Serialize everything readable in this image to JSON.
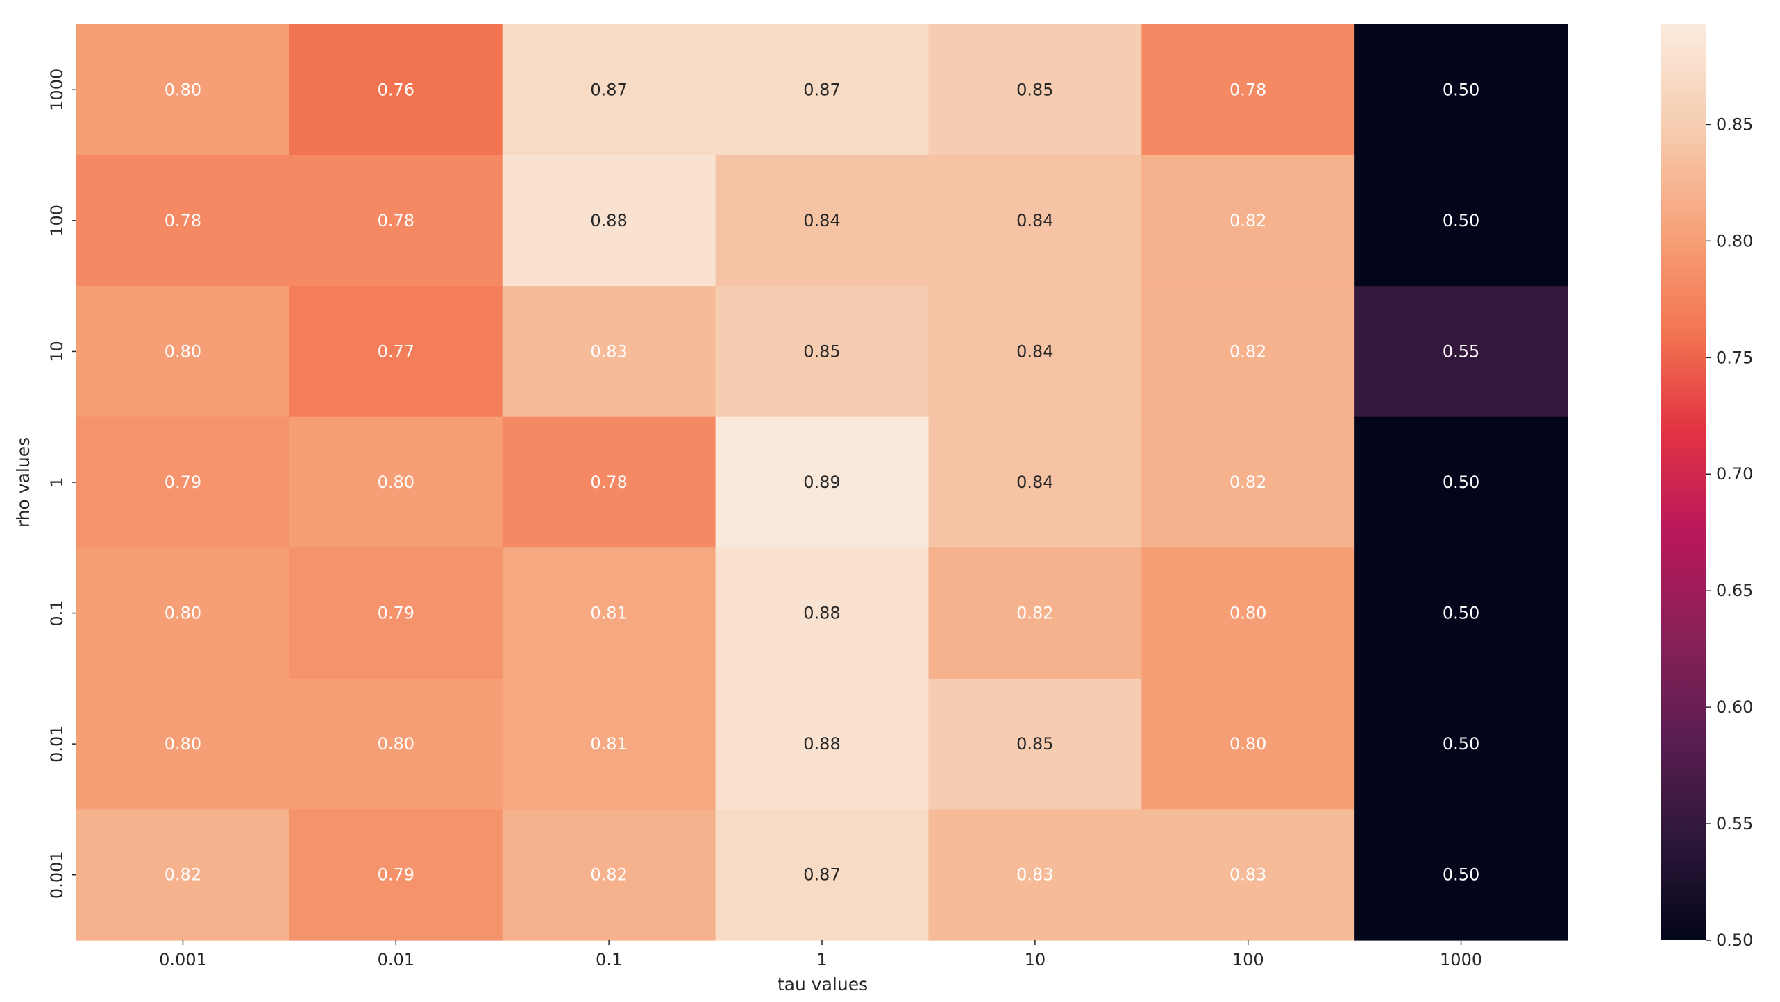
{
  "chart_data": {
    "type": "heatmap",
    "title": "",
    "xlabel": "tau values",
    "ylabel": "rho values",
    "x_categories": [
      "0.001",
      "0.01",
      "0.1",
      "1",
      "10",
      "100",
      "1000"
    ],
    "y_categories": [
      "1000",
      "100",
      "10",
      "1",
      "0.1",
      "0.01",
      "0.001"
    ],
    "values": [
      [
        0.8,
        0.76,
        0.87,
        0.87,
        0.85,
        0.78,
        0.5
      ],
      [
        0.78,
        0.78,
        0.88,
        0.84,
        0.84,
        0.82,
        0.5
      ],
      [
        0.8,
        0.77,
        0.83,
        0.85,
        0.84,
        0.82,
        0.55
      ],
      [
        0.79,
        0.8,
        0.78,
        0.89,
        0.84,
        0.82,
        0.5
      ],
      [
        0.8,
        0.79,
        0.81,
        0.88,
        0.82,
        0.8,
        0.5
      ],
      [
        0.8,
        0.8,
        0.81,
        0.88,
        0.85,
        0.8,
        0.5
      ],
      [
        0.82,
        0.79,
        0.82,
        0.87,
        0.83,
        0.83,
        0.5
      ]
    ],
    "value_labels": [
      [
        "0.80",
        "0.76",
        "0.87",
        "0.87",
        "0.85",
        "0.78",
        "0.50"
      ],
      [
        "0.78",
        "0.78",
        "0.88",
        "0.84",
        "0.84",
        "0.82",
        "0.50"
      ],
      [
        "0.80",
        "0.77",
        "0.83",
        "0.85",
        "0.84",
        "0.82",
        "0.55"
      ],
      [
        "0.79",
        "0.80",
        "0.78",
        "0.89",
        "0.84",
        "0.82",
        "0.50"
      ],
      [
        "0.80",
        "0.79",
        "0.81",
        "0.88",
        "0.82",
        "0.80",
        "0.50"
      ],
      [
        "0.80",
        "0.80",
        "0.81",
        "0.88",
        "0.85",
        "0.80",
        "0.50"
      ],
      [
        "0.82",
        "0.79",
        "0.82",
        "0.87",
        "0.83",
        "0.83",
        "0.50"
      ]
    ],
    "colorbar": {
      "min": 0.5,
      "max": 0.893,
      "ticks": [
        0.5,
        0.55,
        0.6,
        0.65,
        0.7,
        0.75,
        0.8,
        0.85
      ],
      "tick_labels": [
        "0.50",
        "0.55",
        "0.60",
        "0.65",
        "0.70",
        "0.75",
        "0.80",
        "0.85"
      ],
      "colormap": "rocket",
      "stops": [
        "#03051a",
        "#2d1739",
        "#5b1e51",
        "#8a2058",
        "#b8185a",
        "#e13342",
        "#f37651",
        "#f6a47c",
        "#f6cdb0",
        "#faebdd"
      ]
    },
    "annotation_colors": {
      "dark_cell_text": "#ffffff",
      "light_cell_text": "#262626"
    },
    "legend": "right"
  }
}
